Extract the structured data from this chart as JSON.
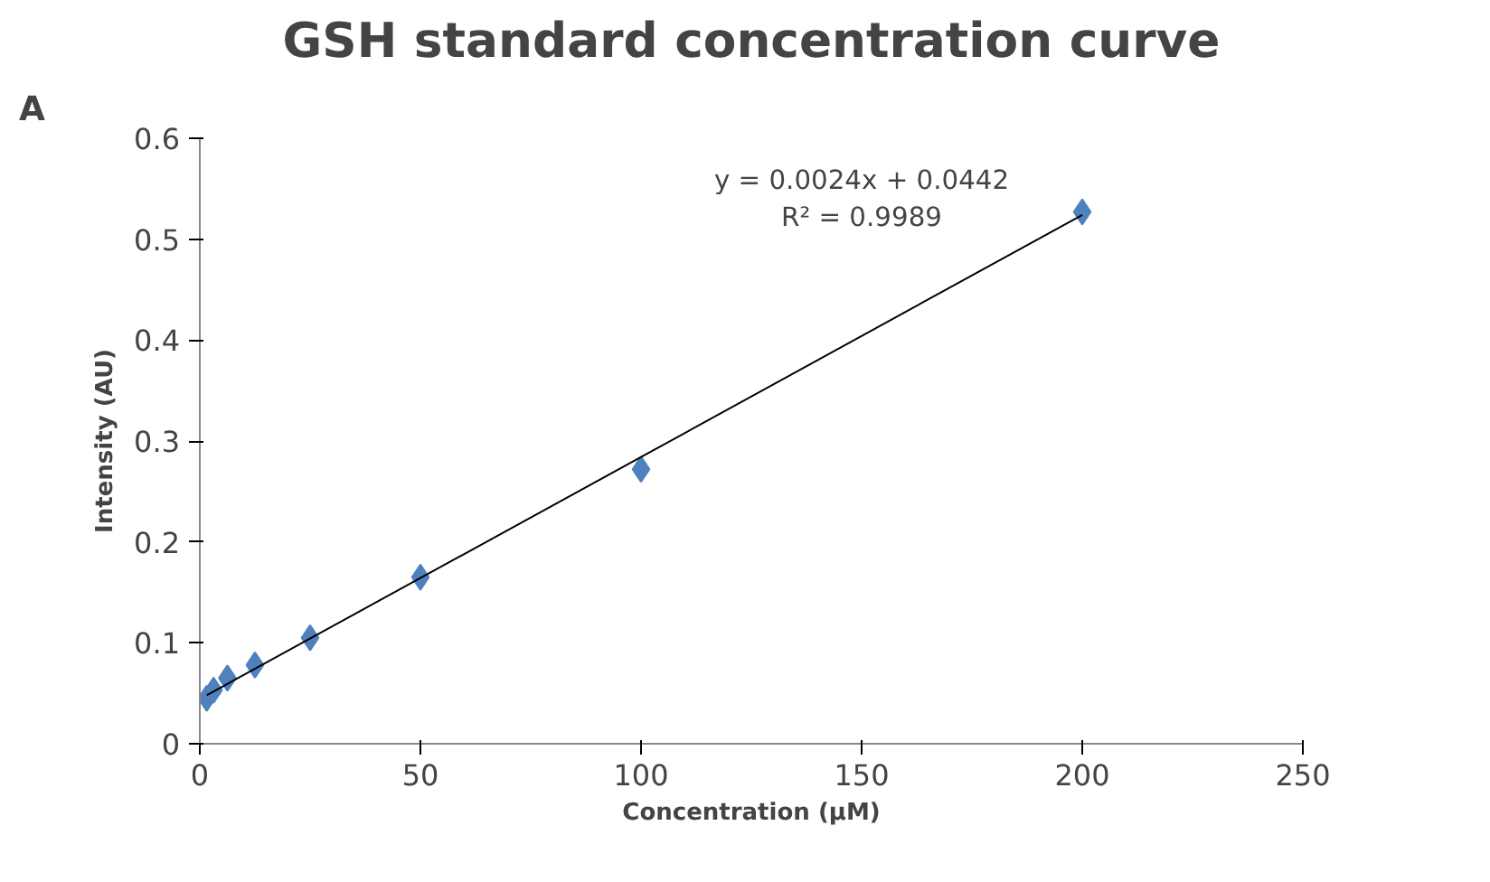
{
  "chart_data": {
    "type": "scatter",
    "title": "GSH standard concentration curve",
    "xlabel": "Concentration (µM)",
    "ylabel": "Intensity (AU)",
    "x": [
      1.5625,
      3.125,
      6.25,
      12.5,
      25,
      50,
      100,
      200
    ],
    "series": [
      {
        "color": "#4f81bd",
        "values": [
          0.045,
          0.053,
          0.065,
          0.078,
          0.105,
          0.165,
          0.272,
          0.527
        ],
        "marker": "diamond"
      },
      {
        "type": "line",
        "color": "#000000",
        "x": [
          1.5625,
          200
        ],
        "values": [
          0.048,
          0.524
        ]
      }
    ],
    "annotations": [
      "A",
      "y = 0.0024x + 0.0442\nR² = 0.9989"
    ],
    "xlim": [
      0,
      250
    ],
    "ylim": [
      0,
      0.6
    ],
    "xticks": [
      0,
      50,
      100,
      150,
      200,
      250
    ],
    "yticks": [
      0,
      0.1,
      0.2,
      0.3,
      0.4,
      0.5,
      0.6
    ],
    "grid": false
  }
}
